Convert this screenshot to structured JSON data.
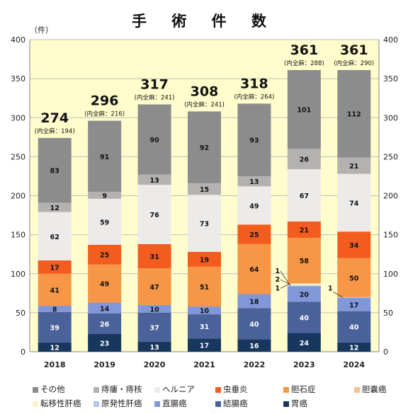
{
  "title": "手 術 件 数",
  "unit": "（件）",
  "colors": {
    "plot_bg": "#FFFDCC",
    "grid": "#bfbfbf"
  },
  "chart_data": {
    "type": "bar",
    "stacked": true,
    "categories": [
      "2018",
      "2019",
      "2020",
      "2021",
      "2022",
      "2023",
      "2024"
    ],
    "ylim": [
      0,
      400
    ],
    "yticks": [
      0,
      50,
      100,
      150,
      200,
      250,
      300,
      350,
      400
    ],
    "right_axis": true,
    "grid": true,
    "legend_position": "bottom",
    "series": [
      {
        "name": "胃癌",
        "color": "#17375E",
        "label_color": "#ffffff",
        "values": [
          12,
          23,
          13,
          17,
          16,
          24,
          12
        ]
      },
      {
        "name": "結腸癌",
        "color": "#4A619A",
        "label_color": "#ffffff",
        "values": [
          39,
          26,
          37,
          31,
          40,
          40,
          40
        ]
      },
      {
        "name": "直腸癌",
        "color": "#8197D8",
        "label_color": "#111111",
        "values": [
          8,
          14,
          10,
          10,
          18,
          20,
          17
        ]
      },
      {
        "name": "原発性肝癌",
        "color": "#B4C7E7",
        "label_color": "#111111",
        "values": [
          0,
          0,
          0,
          0,
          0,
          1,
          1
        ]
      },
      {
        "name": "転移性肝癌",
        "color": "#FFF2CC",
        "label_color": "#111111",
        "values": [
          0,
          0,
          0,
          0,
          0,
          2,
          0
        ]
      },
      {
        "name": "胆嚢癌",
        "color": "#FAC090",
        "label_color": "#111111",
        "values": [
          0,
          0,
          0,
          0,
          0,
          1,
          0
        ]
      },
      {
        "name": "胆石症",
        "color": "#F79646",
        "label_color": "#111111",
        "values": [
          41,
          49,
          47,
          51,
          64,
          58,
          50
        ]
      },
      {
        "name": "虫垂炎",
        "color": "#F25C1E",
        "label_color": "#111111",
        "values": [
          17,
          25,
          31,
          19,
          25,
          21,
          34
        ]
      },
      {
        "name": "ヘルニア",
        "color": "#EDEAEA",
        "label_color": "#111111",
        "values": [
          62,
          59,
          76,
          73,
          49,
          67,
          74
        ]
      },
      {
        "name": "痔瘻・痔核",
        "color": "#B4B1B1",
        "label_color": "#111111",
        "values": [
          12,
          9,
          13,
          15,
          13,
          26,
          21
        ]
      },
      {
        "name": "その他",
        "color": "#8C8C8C",
        "label_color": "#111111",
        "values": [
          83,
          91,
          90,
          92,
          93,
          101,
          112
        ]
      }
    ],
    "totals": [
      "274",
      "296",
      "317",
      "308",
      "318",
      "361",
      "361"
    ],
    "total_notes": [
      "(内全麻：194)",
      "(内全麻：216)",
      "(内全麻：241)",
      "(内全麻：241)",
      "(内全麻：264)",
      "(内全麻：288)",
      "(内全麻：290)"
    ],
    "legend_order": [
      "その他",
      "痔瘻・痔核",
      "ヘルニア",
      "虫垂炎",
      "胆石症",
      "胆嚢癌",
      "転移性肝癌",
      "原発性肝癌",
      "直腸癌",
      "結腸癌",
      "胃癌"
    ]
  }
}
